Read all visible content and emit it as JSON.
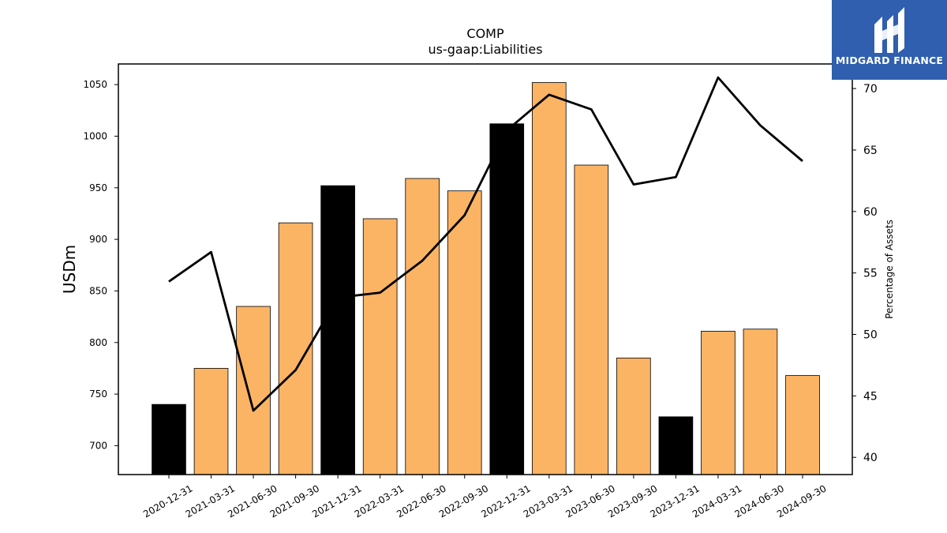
{
  "chart_data": {
    "type": "bar",
    "title": "COMP",
    "subtitle": "us-gaap:Liabilities",
    "ylabel": "USDm",
    "ylabel_right": "Percentage of Assets",
    "ylim": [
      672,
      1070
    ],
    "ylim_right": [
      38.6,
      72
    ],
    "yticks": [
      700,
      750,
      800,
      850,
      900,
      950,
      1000,
      1050
    ],
    "yticks_right": [
      40,
      45,
      50,
      55,
      60,
      65,
      70
    ],
    "categories": [
      "2020-12-31",
      "2021-03-31",
      "2021-06-30",
      "2021-09-30",
      "2021-12-31",
      "2022-03-31",
      "2022-06-30",
      "2022-09-30",
      "2022-12-31",
      "2023-03-31",
      "2023-06-30",
      "2023-09-30",
      "2023-12-31",
      "2024-03-31",
      "2024-06-30",
      "2024-09-30"
    ],
    "series": [
      {
        "type": "bar",
        "values": [
          740,
          775,
          835,
          916,
          952,
          920,
          959,
          947,
          1012,
          1052,
          972,
          785,
          728,
          811,
          813,
          768
        ],
        "bar_colors": [
          "#000000",
          "#fbb464",
          "#fbb464",
          "#fbb464",
          "#000000",
          "#fbb464",
          "#fbb464",
          "#fbb464",
          "#000000",
          "#fbb464",
          "#fbb464",
          "#fbb464",
          "#000000",
          "#fbb464",
          "#fbb464",
          "#fbb464"
        ]
      },
      {
        "type": "line",
        "axis": "right",
        "color": "#000000",
        "values": [
          54.3,
          56.7,
          43.8,
          47.1,
          53.0,
          53.4,
          56.0,
          59.7,
          66.6,
          69.5,
          68.3,
          62.2,
          62.8,
          70.9,
          67.0,
          64.1
        ]
      }
    ],
    "grid": false
  },
  "logo": {
    "text": "MIDGARD FINANCE",
    "icon": "midgard-logo-icon",
    "bg_color": "#2f5fae"
  }
}
